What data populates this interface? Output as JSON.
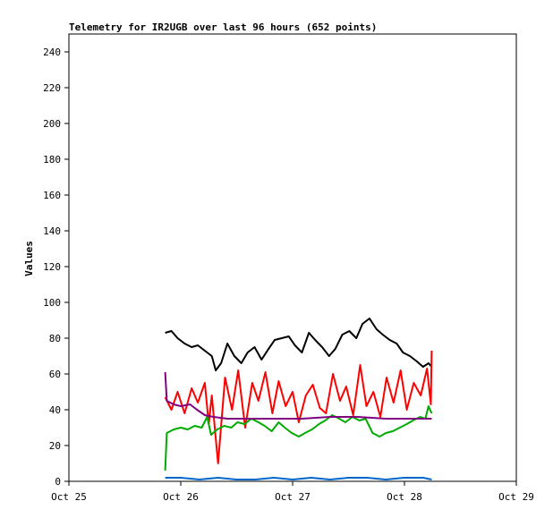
{
  "chart_data": {
    "type": "line",
    "title": "Telemetry for IR2UGB over last 96 hours (652 points)",
    "xlabel": "",
    "ylabel": "Values",
    "x_ticks": [
      "Oct 25",
      "Oct 26",
      "Oct 27",
      "Oct 28",
      "Oct 29"
    ],
    "xlim": [
      "Oct 25 00:00",
      "Oct 29 00:00"
    ],
    "ylim": [
      0,
      250
    ],
    "y_ticks": [
      0,
      20,
      40,
      60,
      80,
      100,
      120,
      140,
      160,
      180,
      200,
      220,
      240
    ],
    "grid": false,
    "legend": "none",
    "series": [
      {
        "color": "#000000",
        "x": [
          "Oct 25 20:40",
          "Oct 25 22:00",
          "Oct 25 23:20",
          "Oct 26 00:50",
          "Oct 26 02:20",
          "Oct 26 03:40",
          "Oct 26 05:10",
          "Oct 26 06:40",
          "Oct 26 07:30",
          "Oct 26 08:40",
          "Oct 26 10:00",
          "Oct 26 11:30",
          "Oct 26 13:00",
          "Oct 26 14:20",
          "Oct 26 15:50",
          "Oct 26 17:20",
          "Oct 26 18:50",
          "Oct 26 20:10",
          "Oct 26 21:40",
          "Oct 26 23:10",
          "Oct 27 00:30",
          "Oct 27 02:00",
          "Oct 27 03:30",
          "Oct 27 04:50",
          "Oct 27 06:20",
          "Oct 27 07:50",
          "Oct 27 09:10",
          "Oct 27 10:40",
          "Oct 27 12:10",
          "Oct 27 13:40",
          "Oct 27 15:00",
          "Oct 27 16:30",
          "Oct 27 18:00",
          "Oct 27 19:20",
          "Oct 27 20:50",
          "Oct 27 22:20",
          "Oct 27 23:40",
          "Oct 28 01:10",
          "Oct 28 02:40",
          "Oct 28 04:00",
          "Oct 28 05:10",
          "Oct 28 05:50"
        ],
        "values": [
          83,
          84,
          80,
          77,
          75,
          76,
          73,
          70,
          62,
          66,
          77,
          70,
          66,
          72,
          75,
          68,
          74,
          79,
          80,
          81,
          76,
          72,
          83,
          79,
          75,
          70,
          74,
          82,
          84,
          80,
          88,
          91,
          85,
          82,
          79,
          77,
          72,
          70,
          67,
          64,
          66,
          64
        ]
      },
      {
        "color": "#ff0000",
        "x": [
          "Oct 25 20:40",
          "Oct 25 22:00",
          "Oct 25 23:20",
          "Oct 26 00:50",
          "Oct 26 02:20",
          "Oct 26 03:40",
          "Oct 26 05:10",
          "Oct 26 06:00",
          "Oct 26 06:40",
          "Oct 26 08:00",
          "Oct 26 09:30",
          "Oct 26 11:00",
          "Oct 26 12:20",
          "Oct 26 13:50",
          "Oct 26 15:20",
          "Oct 26 16:40",
          "Oct 26 18:10",
          "Oct 26 19:40",
          "Oct 26 21:00",
          "Oct 26 22:30",
          "Oct 27 00:00",
          "Oct 27 01:20",
          "Oct 27 02:50",
          "Oct 27 04:20",
          "Oct 27 05:50",
          "Oct 27 07:10",
          "Oct 27 08:40",
          "Oct 27 10:10",
          "Oct 27 11:30",
          "Oct 27 13:00",
          "Oct 27 14:30",
          "Oct 27 15:50",
          "Oct 27 17:20",
          "Oct 27 18:50",
          "Oct 27 20:10",
          "Oct 27 21:40",
          "Oct 27 23:10",
          "Oct 28 00:30",
          "Oct 28 02:00",
          "Oct 28 03:30",
          "Oct 28 04:50",
          "Oct 28 05:40",
          "Oct 28 05:50"
        ],
        "values": [
          47,
          40,
          50,
          38,
          52,
          44,
          55,
          32,
          48,
          10,
          58,
          40,
          62,
          30,
          55,
          45,
          61,
          38,
          56,
          42,
          50,
          33,
          48,
          54,
          41,
          38,
          60,
          45,
          53,
          37,
          65,
          42,
          50,
          36,
          58,
          44,
          62,
          40,
          55,
          48,
          63,
          43,
          73
        ]
      },
      {
        "color": "#00aa00",
        "x": [
          "Oct 25 20:40",
          "Oct 25 21:00",
          "Oct 25 22:30",
          "Oct 26 00:00",
          "Oct 26 01:30",
          "Oct 26 03:00",
          "Oct 26 04:30",
          "Oct 26 05:40",
          "Oct 26 06:30",
          "Oct 26 07:50",
          "Oct 26 09:20",
          "Oct 26 10:50",
          "Oct 26 12:10",
          "Oct 26 13:40",
          "Oct 26 15:10",
          "Oct 26 16:40",
          "Oct 26 18:00",
          "Oct 26 19:30",
          "Oct 26 21:00",
          "Oct 26 22:20",
          "Oct 26 23:50",
          "Oct 27 01:20",
          "Oct 27 02:40",
          "Oct 27 04:10",
          "Oct 27 05:40",
          "Oct 27 07:00",
          "Oct 27 08:30",
          "Oct 27 10:00",
          "Oct 27 11:20",
          "Oct 27 12:50",
          "Oct 27 14:20",
          "Oct 27 15:40",
          "Oct 27 17:10",
          "Oct 27 18:40",
          "Oct 27 20:00",
          "Oct 27 21:30",
          "Oct 27 23:00",
          "Oct 28 00:30",
          "Oct 28 01:50",
          "Oct 28 03:20",
          "Oct 28 04:30",
          "Oct 28 05:10",
          "Oct 28 05:50"
        ],
        "values": [
          6,
          27,
          29,
          30,
          29,
          31,
          30,
          36,
          26,
          29,
          31,
          30,
          33,
          32,
          35,
          33,
          31,
          28,
          33,
          30,
          27,
          25,
          27,
          29,
          32,
          34,
          37,
          35,
          33,
          36,
          34,
          35,
          27,
          25,
          27,
          28,
          30,
          32,
          34,
          36,
          35,
          42,
          38
        ]
      },
      {
        "color": "#800080",
        "x": [
          "Oct 25 20:40",
          "Oct 25 21:00",
          "Oct 25 22:30",
          "Oct 26 00:00",
          "Oct 26 02:00",
          "Oct 26 03:30",
          "Oct 26 05:10",
          "Oct 26 07:00",
          "Oct 26 10:00",
          "Oct 26 14:00",
          "Oct 26 20:00",
          "Oct 27 02:00",
          "Oct 27 08:00",
          "Oct 27 14:00",
          "Oct 27 20:00",
          "Oct 28 02:00",
          "Oct 28 05:50"
        ],
        "values": [
          61,
          45,
          43,
          42,
          43,
          40,
          37,
          36,
          35,
          35,
          35,
          35,
          36,
          36,
          35,
          35,
          35
        ]
      },
      {
        "color": "#0066cc",
        "x": [
          "Oct 25 20:40",
          "Oct 26 00:00",
          "Oct 26 04:00",
          "Oct 26 08:00",
          "Oct 26 12:00",
          "Oct 26 16:00",
          "Oct 26 20:00",
          "Oct 27 00:00",
          "Oct 27 04:00",
          "Oct 27 08:00",
          "Oct 27 12:00",
          "Oct 27 16:00",
          "Oct 27 20:00",
          "Oct 28 00:00",
          "Oct 28 04:00",
          "Oct 28 05:50"
        ],
        "values": [
          2,
          2,
          1,
          2,
          1,
          1,
          2,
          1,
          2,
          1,
          2,
          2,
          1,
          2,
          2,
          1
        ]
      }
    ]
  }
}
